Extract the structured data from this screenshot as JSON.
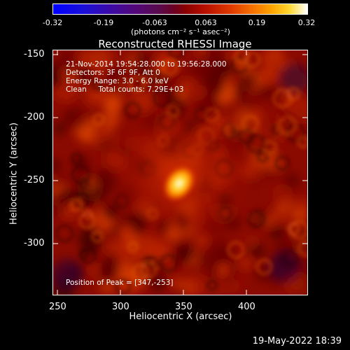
{
  "colorbar": {
    "ticks": [
      "-0.32",
      "-0.19",
      "-0.063",
      "0.063",
      "0.19",
      "0.32"
    ],
    "units": "(photons cm⁻² s⁻¹ asec⁻²)"
  },
  "title": "Reconstructed RHESSI Image",
  "info": {
    "line1": "21-Nov-2014 19:54:28.000 to 19:56:28.000",
    "line2": "Detectors: 3F 6F 9F, Att 0",
    "line3": "Energy Range: 3.0 - 6.0 keV",
    "line4": "Clean     Total counts: 7.29E+03",
    "peak": "Position of Peak = [347,-253]"
  },
  "axes": {
    "xlabel": "Heliocentric X (arcsec)",
    "ylabel": "Heliocentric Y (arcsec)",
    "xticks": [
      "250",
      "300",
      "350",
      "400"
    ],
    "yticks": [
      "-150",
      "-200",
      "-250",
      "-300"
    ]
  },
  "timestamp": "19-May-2022 18:39"
}
